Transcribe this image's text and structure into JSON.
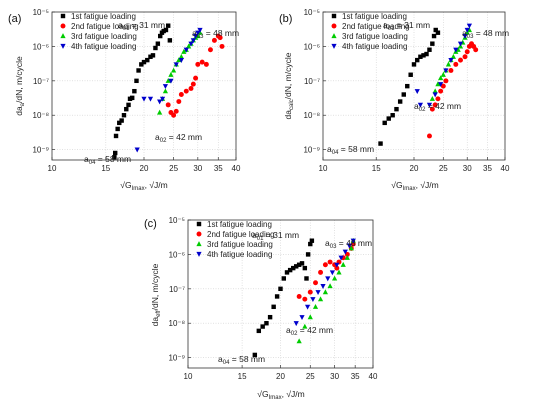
{
  "figure": {
    "colors": {
      "series1": "#000000",
      "series2": "#ff0000",
      "series3": "#00cc00",
      "series4": "#0000cc"
    }
  },
  "chart_data": [
    {
      "type": "scatter",
      "panel_label": "(a)",
      "x_axis_label": "√G",
      "x_axis_label_subscript": "Imax",
      "x_axis_label_suffix": ", √J/m",
      "y_axis_label_prefix": "da",
      "y_axis_label_subscript": "a",
      "y_axis_label_suffix": "/dN, m/cycle",
      "xscale": "log",
      "yscale": "log",
      "xlim": [
        10,
        40
      ],
      "ylim": [
        5e-10,
        1e-05
      ],
      "x_ticks": [
        10,
        15,
        20,
        25,
        30,
        35,
        40
      ],
      "y_ticks": [
        "10⁻⁹",
        "10⁻⁸",
        "10⁻⁷",
        "10⁻⁶",
        "10⁻⁵"
      ],
      "grid": true,
      "legend_position": "top-left",
      "annotations": [
        {
          "base": "a",
          "sub": "01",
          "text": " = 31 mm"
        },
        {
          "base": "a",
          "sub": "03",
          "text": " = 48 mm"
        },
        {
          "base": "a",
          "sub": "02",
          "text": " = 42 mm"
        },
        {
          "base": "a",
          "sub": "04",
          "text": " = 58 mm"
        }
      ],
      "series": [
        {
          "name": "1st fatigue loading",
          "marker": "square",
          "color": "#000000",
          "points": [
            [
              16.0,
              6e-10
            ],
            [
              16.1,
              8e-10
            ],
            [
              16.2,
              2.5e-09
            ],
            [
              16.4,
              4e-09
            ],
            [
              16.6,
              6e-09
            ],
            [
              16.9,
              7e-09
            ],
            [
              17.2,
              1e-08
            ],
            [
              17.5,
              1.5e-08
            ],
            [
              17.8,
              2e-08
            ],
            [
              18.0,
              3e-08
            ],
            [
              18.3,
              3.2e-08
            ],
            [
              18.6,
              5e-08
            ],
            [
              18.9,
              1e-07
            ],
            [
              19.2,
              2e-07
            ],
            [
              19.6,
              3e-07
            ],
            [
              20.0,
              3.5e-07
            ],
            [
              20.5,
              4e-07
            ],
            [
              21.0,
              5e-07
            ],
            [
              21.4,
              5.5e-07
            ],
            [
              21.8,
              9e-07
            ],
            [
              22.2,
              1.2e-06
            ],
            [
              22.6,
              2e-06
            ],
            [
              22.9,
              2.5e-06
            ],
            [
              23.2,
              2.8e-06
            ],
            [
              23.6,
              3e-06
            ],
            [
              24.0,
              4e-06
            ],
            [
              24.3,
              1.5e-06
            ]
          ]
        },
        {
          "name": "2nd fatigue loading",
          "marker": "circle",
          "color": "#ff0000",
          "points": [
            [
              24.0,
              2e-08
            ],
            [
              24.5,
              1.2e-08
            ],
            [
              25.0,
              1e-08
            ],
            [
              25.5,
              1.3e-08
            ],
            [
              26.0,
              2.5e-08
            ],
            [
              26.5,
              4e-08
            ],
            [
              27.5,
              5e-08
            ],
            [
              28.5,
              6e-08
            ],
            [
              29.0,
              8e-08
            ],
            [
              29.5,
              1.2e-07
            ],
            [
              30.0,
              3e-07
            ],
            [
              31.0,
              3.5e-07
            ],
            [
              32.0,
              3e-07
            ],
            [
              33.0,
              8e-07
            ],
            [
              34.0,
              1.5e-06
            ],
            [
              35.0,
              2e-06
            ],
            [
              35.5,
              1.8e-06
            ],
            [
              36.0,
              1e-06
            ]
          ]
        },
        {
          "name": "3rd fatigue loading",
          "marker": "triangle-up",
          "color": "#00cc00",
          "points": [
            [
              22.5,
              1.2e-08
            ],
            [
              23.0,
              3e-08
            ],
            [
              23.5,
              5e-08
            ],
            [
              24.0,
              1e-07
            ],
            [
              24.5,
              1.5e-07
            ],
            [
              25.0,
              2e-07
            ],
            [
              25.5,
              3e-07
            ],
            [
              26.0,
              4e-07
            ],
            [
              26.5,
              5e-07
            ],
            [
              27.0,
              7e-07
            ],
            [
              27.5,
              8e-07
            ],
            [
              28.0,
              1e-06
            ],
            [
              28.5,
              1.2e-06
            ],
            [
              29.0,
              1.5e-06
            ],
            [
              29.5,
              1.8e-06
            ],
            [
              30.0,
              2e-06
            ],
            [
              30.5,
              2.5e-06
            ]
          ]
        },
        {
          "name": "4th fatigue loading",
          "marker": "triangle-down",
          "color": "#0000cc",
          "points": [
            [
              19.0,
              1e-09
            ],
            [
              20.0,
              3e-08
            ],
            [
              21.0,
              3e-08
            ],
            [
              22.5,
              2.5e-08
            ],
            [
              23.0,
              3e-08
            ],
            [
              23.5,
              7e-08
            ],
            [
              24.5,
              1e-07
            ],
            [
              25.5,
              3e-07
            ],
            [
              26.5,
              4e-07
            ],
            [
              27.5,
              8e-07
            ],
            [
              28.5,
              1.2e-06
            ],
            [
              29.0,
              1.5e-06
            ],
            [
              29.5,
              2e-06
            ],
            [
              30.0,
              2.5e-06
            ],
            [
              30.5,
              3e-06
            ]
          ]
        }
      ]
    },
    {
      "type": "scatter",
      "panel_label": "(b)",
      "x_axis_label": "√G",
      "x_axis_label_subscript": "Imax",
      "x_axis_label_suffix": ", √J/m",
      "y_axis_label_prefix": "da",
      "y_axis_label_subscript": "calc",
      "y_axis_label_suffix": "/dN, m/cycle",
      "xscale": "log",
      "yscale": "log",
      "xlim": [
        10,
        40
      ],
      "ylim": [
        5e-10,
        1e-05
      ],
      "x_ticks": [
        10,
        15,
        20,
        25,
        30,
        35,
        40
      ],
      "y_ticks": [
        "10⁻⁹",
        "10⁻⁸",
        "10⁻⁷",
        "10⁻⁶",
        "10⁻⁵"
      ],
      "grid": true,
      "legend_position": "top-left",
      "annotations": [
        {
          "base": "a",
          "sub": "01",
          "text": " = 31 mm"
        },
        {
          "base": "a",
          "sub": "03",
          "text": " = 48 mm"
        },
        {
          "base": "a",
          "sub": "02",
          "text": " = 42 mm"
        },
        {
          "base": "a",
          "sub": "04",
          "text": " = 58 mm"
        }
      ],
      "series": [
        {
          "name": "1st fatigue loading",
          "marker": "square",
          "color": "#000000",
          "points": [
            [
              15.5,
              1.5e-09
            ],
            [
              16.0,
              6e-09
            ],
            [
              16.5,
              8e-09
            ],
            [
              17.0,
              1e-08
            ],
            [
              17.5,
              1.5e-08
            ],
            [
              18.0,
              2.5e-08
            ],
            [
              18.5,
              4e-08
            ],
            [
              19.0,
              7e-08
            ],
            [
              19.5,
              1.5e-07
            ],
            [
              20.0,
              3e-07
            ],
            [
              20.5,
              4e-07
            ],
            [
              21.0,
              5e-07
            ],
            [
              21.5,
              5.5e-07
            ],
            [
              22.0,
              6e-07
            ],
            [
              22.5,
              8e-07
            ],
            [
              23.0,
              1.2e-06
            ],
            [
              23.3,
              2e-06
            ],
            [
              23.6,
              3e-06
            ],
            [
              24.0,
              2.5e-06
            ]
          ]
        },
        {
          "name": "2nd fatigue loading",
          "marker": "circle",
          "color": "#ff0000",
          "points": [
            [
              22.5,
              2.5e-09
            ],
            [
              23.0,
              1.5e-08
            ],
            [
              23.5,
              2e-08
            ],
            [
              24.0,
              3e-08
            ],
            [
              24.5,
              5e-08
            ],
            [
              25.0,
              7e-08
            ],
            [
              25.5,
              1e-07
            ],
            [
              26.5,
              2e-07
            ],
            [
              27.5,
              3e-07
            ],
            [
              28.5,
              4e-07
            ],
            [
              29.5,
              5e-07
            ],
            [
              30.0,
              7e-07
            ],
            [
              30.5,
              1e-06
            ],
            [
              31.0,
              1.2e-06
            ],
            [
              31.5,
              1e-06
            ],
            [
              32.0,
              8e-07
            ]
          ]
        },
        {
          "name": "3rd fatigue loading",
          "marker": "triangle-up",
          "color": "#00cc00",
          "points": [
            [
              23.0,
              3e-08
            ],
            [
              23.5,
              5e-08
            ],
            [
              24.0,
              8e-08
            ],
            [
              24.5,
              1.2e-07
            ],
            [
              25.0,
              1.5e-07
            ],
            [
              25.5,
              2e-07
            ],
            [
              26.0,
              3e-07
            ],
            [
              26.5,
              4e-07
            ],
            [
              27.0,
              5e-07
            ],
            [
              27.5,
              7e-07
            ],
            [
              28.0,
              8e-07
            ],
            [
              28.5,
              1e-06
            ],
            [
              29.0,
              1.3e-06
            ],
            [
              29.5,
              1.8e-06
            ],
            [
              30.0,
              2.5e-06
            ],
            [
              30.5,
              3e-06
            ]
          ]
        },
        {
          "name": "4th fatigue loading",
          "marker": "triangle-down",
          "color": "#0000cc",
          "points": [
            [
              20.5,
              5e-08
            ],
            [
              21.0,
              2e-08
            ],
            [
              22.5,
              2e-08
            ],
            [
              23.5,
              4e-08
            ],
            [
              24.5,
              8e-08
            ],
            [
              25.5,
              2e-07
            ],
            [
              26.5,
              4e-07
            ],
            [
              27.5,
              8e-07
            ],
            [
              28.5,
              1.2e-06
            ],
            [
              29.5,
              2e-06
            ],
            [
              30.0,
              3e-06
            ],
            [
              30.5,
              4e-06
            ]
          ]
        }
      ]
    },
    {
      "type": "scatter",
      "panel_label": "(c)",
      "x_axis_label": "√G",
      "x_axis_label_subscript": "Imax",
      "x_axis_label_suffix": ", √J/m",
      "y_axis_label_prefix": "da",
      "y_axis_label_subscript": "eff",
      "y_axis_label_suffix": "/dN, m/cycle",
      "xscale": "log",
      "yscale": "log",
      "xlim": [
        10,
        40
      ],
      "ylim": [
        5e-10,
        1e-05
      ],
      "x_ticks": [
        10,
        15,
        20,
        25,
        30,
        35,
        40
      ],
      "y_ticks": [
        "10⁻⁹",
        "10⁻⁸",
        "10⁻⁷",
        "10⁻⁶",
        "10⁻⁵"
      ],
      "grid": true,
      "legend_position": "top-left",
      "annotations": [
        {
          "base": "a",
          "sub": "01",
          "text": " = 31 mm"
        },
        {
          "base": "a",
          "sub": "03",
          "text": " = 48 mm"
        },
        {
          "base": "a",
          "sub": "02",
          "text": " = 42 mm"
        },
        {
          "base": "a",
          "sub": "04",
          "text": " = 58 mm"
        }
      ],
      "series": [
        {
          "name": "1st fatigue loading",
          "marker": "square",
          "color": "#000000",
          "points": [
            [
              16.5,
              1.2e-09
            ],
            [
              17.0,
              6e-09
            ],
            [
              17.5,
              8e-09
            ],
            [
              18.0,
              1e-08
            ],
            [
              18.5,
              1.5e-08
            ],
            [
              19.0,
              3e-08
            ],
            [
              19.5,
              6e-08
            ],
            [
              20.0,
              1e-07
            ],
            [
              20.5,
              2e-07
            ],
            [
              21.0,
              3e-07
            ],
            [
              21.5,
              3.5e-07
            ],
            [
              22.0,
              4e-07
            ],
            [
              22.5,
              4.5e-07
            ],
            [
              23.0,
              5e-07
            ],
            [
              23.5,
              5.5e-07
            ],
            [
              24.0,
              4e-07
            ],
            [
              24.3,
              2e-07
            ],
            [
              24.6,
              1e-06
            ],
            [
              25.0,
              2e-06
            ],
            [
              25.3,
              2.5e-06
            ]
          ]
        },
        {
          "name": "2nd fatigue loading",
          "marker": "circle",
          "color": "#ff0000",
          "points": [
            [
              23.0,
              6e-08
            ],
            [
              24.0,
              5e-08
            ],
            [
              25.0,
              8e-08
            ],
            [
              26.0,
              1.5e-07
            ],
            [
              27.0,
              3e-07
            ],
            [
              28.0,
              5e-07
            ],
            [
              29.0,
              6e-07
            ],
            [
              30.0,
              5e-07
            ],
            [
              30.5,
              4e-07
            ],
            [
              31.0,
              6e-07
            ],
            [
              32.0,
              8e-07
            ],
            [
              33.0,
              1e-06
            ],
            [
              34.0,
              1.5e-06
            ],
            [
              34.5,
              2e-06
            ]
          ]
        },
        {
          "name": "3rd fatigue loading",
          "marker": "triangle-up",
          "color": "#00cc00",
          "points": [
            [
              23.0,
              3e-09
            ],
            [
              24.0,
              8e-09
            ],
            [
              25.0,
              1.5e-08
            ],
            [
              26.0,
              3e-08
            ],
            [
              27.0,
              5e-08
            ],
            [
              28.0,
              8e-08
            ],
            [
              29.0,
              1.2e-07
            ],
            [
              30.0,
              2e-07
            ],
            [
              31.0,
              3e-07
            ],
            [
              32.0,
              5e-07
            ],
            [
              33.0,
              8e-07
            ],
            [
              34.0,
              1.5e-06
            ],
            [
              34.5,
              2.5e-06
            ]
          ]
        },
        {
          "name": "4th fatigue loading",
          "marker": "triangle-down",
          "color": "#0000cc",
          "points": [
            [
              22.5,
              1e-08
            ],
            [
              23.5,
              1.5e-08
            ],
            [
              24.5,
              3e-08
            ],
            [
              25.5,
              5e-08
            ],
            [
              26.5,
              8e-08
            ],
            [
              27.5,
              1.2e-07
            ],
            [
              28.5,
              2e-07
            ],
            [
              29.5,
              3e-07
            ],
            [
              30.5,
              5e-07
            ],
            [
              31.5,
              8e-07
            ],
            [
              32.5,
              1.2e-06
            ],
            [
              33.5,
              1.8e-06
            ],
            [
              34.5,
              2.5e-06
            ]
          ]
        }
      ]
    }
  ]
}
